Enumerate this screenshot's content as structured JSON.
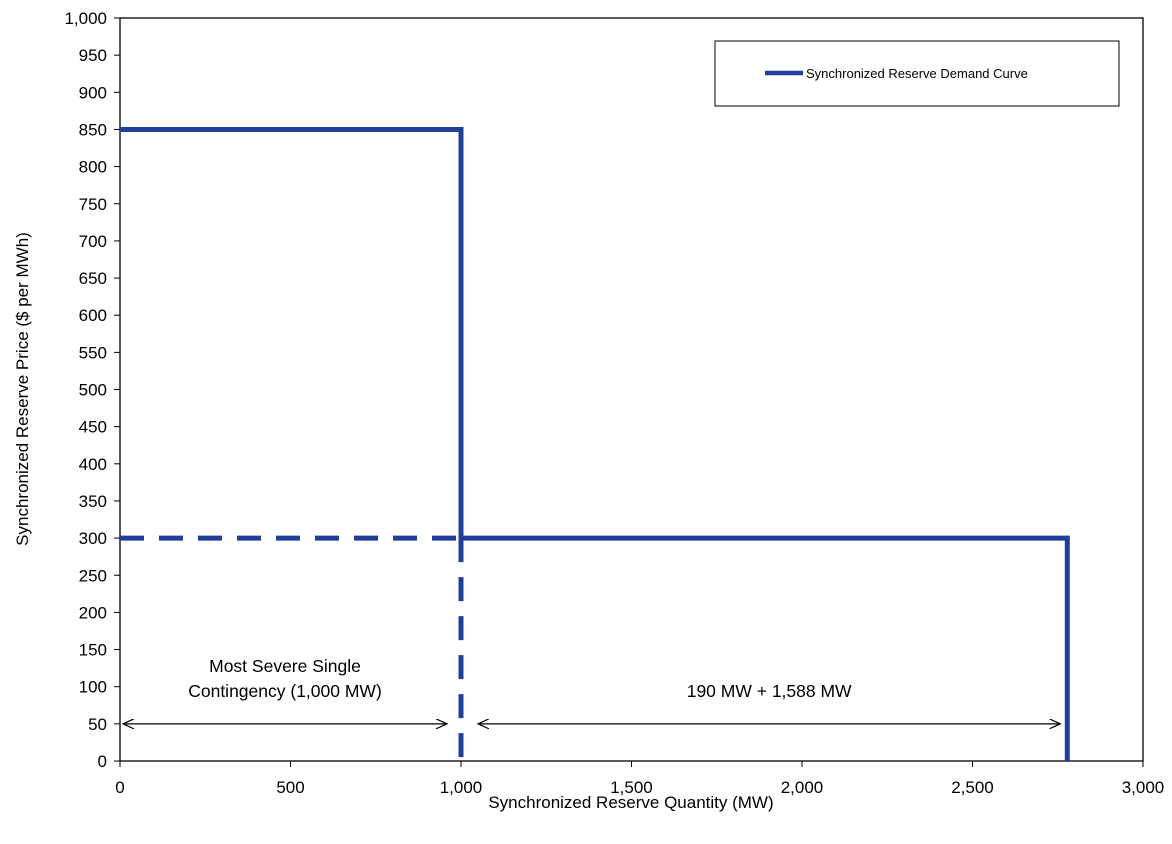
{
  "chart_data": {
    "type": "line",
    "xlabel": "Synchronized Reserve Quantity (MW)",
    "ylabel": "Synchronized Reserve Price ($ per MWh)",
    "xlim": [
      0,
      3000
    ],
    "ylim": [
      0,
      1000
    ],
    "x_ticks": [
      0,
      500,
      1000,
      1500,
      2000,
      2500,
      3000
    ],
    "x_tick_labels": [
      "0",
      "500",
      "1,000",
      "1,500",
      "2,000",
      "2,500",
      "3,000"
    ],
    "y_ticks": [
      0,
      50,
      100,
      150,
      200,
      250,
      300,
      350,
      400,
      450,
      500,
      550,
      600,
      650,
      700,
      750,
      800,
      850,
      900,
      950,
      1000
    ],
    "y_tick_labels": [
      "0",
      "50",
      "100",
      "150",
      "200",
      "250",
      "300",
      "350",
      "400",
      "450",
      "500",
      "550",
      "600",
      "650",
      "700",
      "750",
      "800",
      "850",
      "900",
      "950",
      "1,000"
    ],
    "grid": false,
    "legend_position": "top-right",
    "colors": {
      "series": "#203f99",
      "axis": "#000000"
    },
    "series": [
      {
        "name": "Synchronized Reserve Demand Curve",
        "style": "solid",
        "points": [
          [
            0,
            850
          ],
          [
            1000,
            850
          ],
          [
            1000,
            300
          ],
          [
            2778,
            300
          ],
          [
            2778,
            0
          ]
        ]
      }
    ],
    "reference_lines": [
      {
        "style": "dashed",
        "points": [
          [
            0,
            300
          ],
          [
            1000,
            300
          ]
        ]
      },
      {
        "style": "dashed",
        "points": [
          [
            1000,
            300
          ],
          [
            1000,
            0
          ]
        ]
      }
    ],
    "annotations": [
      {
        "lines": [
          "Most Severe Single",
          "Contingency (1,000 MW)"
        ],
        "arrow_from": 0,
        "arrow_to": 1000,
        "arrow_y": 50
      },
      {
        "lines": [
          "190 MW + 1,588 MW"
        ],
        "arrow_from": 1000,
        "arrow_to": 2778,
        "arrow_y": 50
      }
    ]
  }
}
